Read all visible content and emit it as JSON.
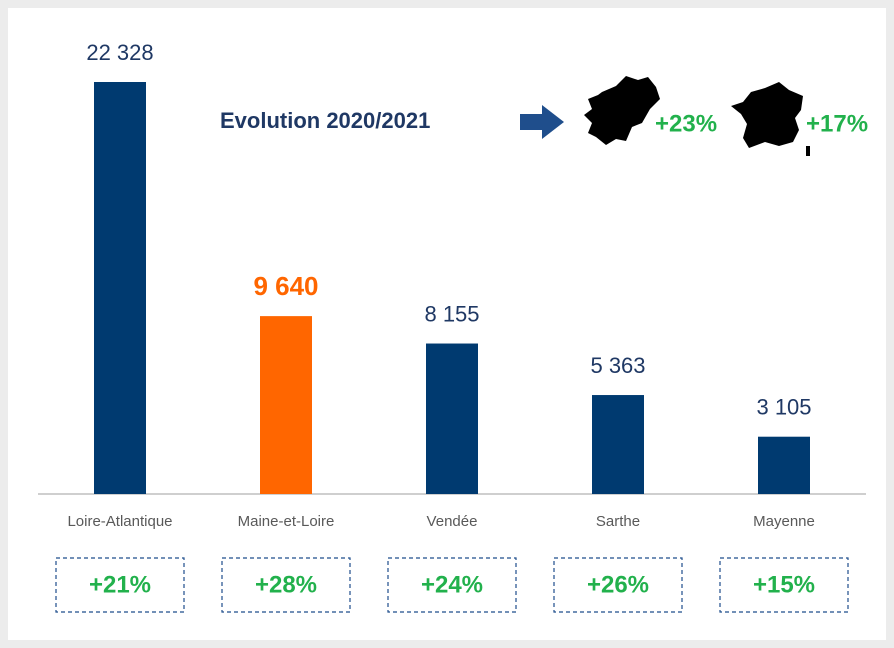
{
  "chart_data": {
    "type": "bar",
    "categories": [
      "Loire-Atlantique",
      "Maine-et-Loire",
      "Vendée",
      "Sarthe",
      "Mayenne"
    ],
    "values": [
      22328,
      9640,
      8155,
      5363,
      3105
    ],
    "value_labels": [
      "22 328",
      "9 640",
      "8 155",
      "5 363",
      "3 105"
    ],
    "colors": [
      "#003a70",
      "#ff6600",
      "#003a70",
      "#003a70",
      "#003a70"
    ],
    "evolution_labels": [
      "+21%",
      "+28%",
      "+24%",
      "+26%",
      "+15%"
    ],
    "annotation": {
      "text": "Evolution 2020/2021",
      "region": "+23%",
      "france": "+17%"
    }
  }
}
